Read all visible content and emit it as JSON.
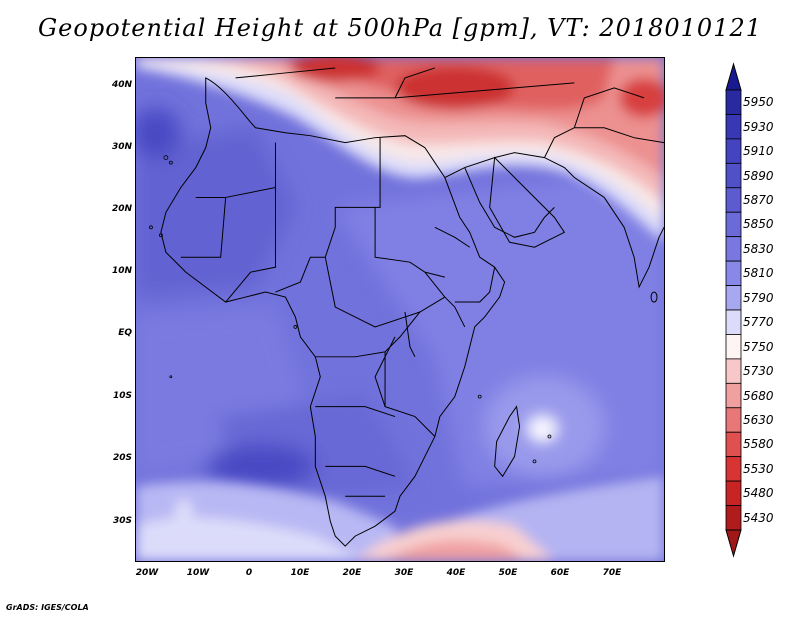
{
  "title": "Geopotential Height at 500hPa [gpm], VT: 2018010121",
  "footer": "GrADS: IGES/COLA",
  "map": {
    "lat_labels": [
      "40N",
      "30N",
      "20N",
      "10N",
      "EQ",
      "10S",
      "20S",
      "30S"
    ],
    "lon_labels": [
      "20W",
      "10W",
      "0",
      "10E",
      "20E",
      "30E",
      "40E",
      "50E",
      "60E",
      "70E"
    ]
  },
  "colorbar": {
    "labels": [
      "5950",
      "5930",
      "5910",
      "5890",
      "5870",
      "5850",
      "5830",
      "5810",
      "5790",
      "5770",
      "5750",
      "5730",
      "5680",
      "5630",
      "5580",
      "5530",
      "5480",
      "5430"
    ],
    "colors": [
      "#2a2aa0",
      "#3838b4",
      "#4444c0",
      "#5050c8",
      "#5c5cd0",
      "#6a6ad8",
      "#7878e0",
      "#8888e8",
      "#a8a8f0",
      "#dcdcfa",
      "#fff4f4",
      "#f8c8c8",
      "#f0a0a0",
      "#e87878",
      "#e05050",
      "#d83434",
      "#c82424",
      "#b01c1c"
    ]
  }
}
